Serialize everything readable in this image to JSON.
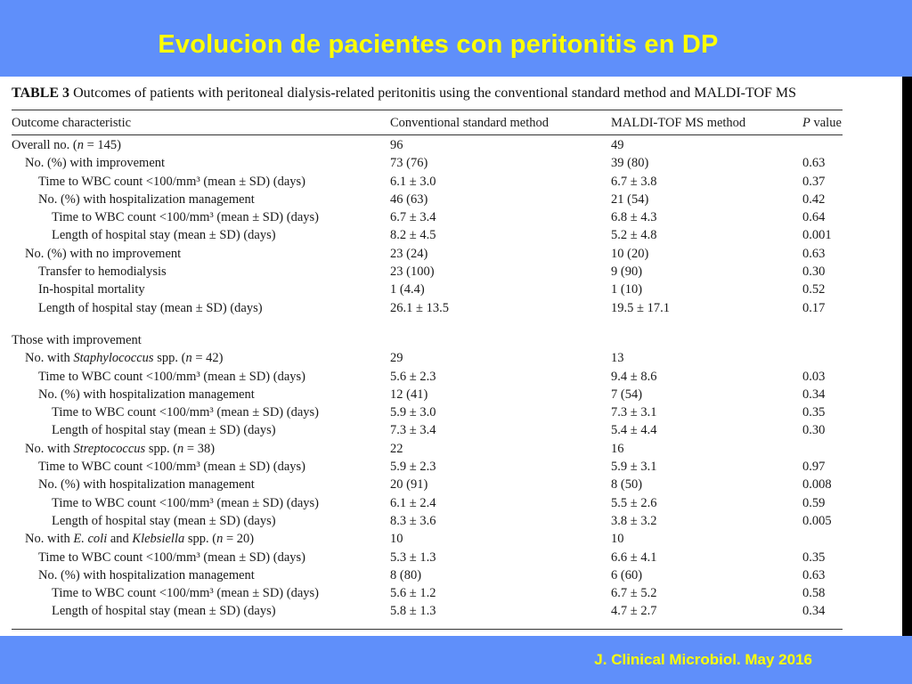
{
  "slide": {
    "title": "Evolucion de pacientes con peritonitis en DP",
    "footer": "J. Clinical Microbiol. May 2016",
    "colors": {
      "background": "#5f8ffa",
      "title": "#ffff00",
      "panel": "#ffffff"
    }
  },
  "table": {
    "caption_label": "TABLE 3",
    "caption_text": "Outcomes of patients with peritoneal dialysis-related peritonitis using the conventional standard method and MALDI-TOF MS",
    "headers": [
      "Outcome characteristic",
      "Conventional standard method",
      "MALDI-TOF MS method",
      "P value"
    ],
    "section1": [
      {
        "indent": 0,
        "label": "Overall no. (n = 145)",
        "conv": "96",
        "maldi": "49",
        "p": ""
      },
      {
        "indent": 1,
        "label": "No. (%) with improvement",
        "conv": "73 (76)",
        "maldi": "39 (80)",
        "p": "0.63"
      },
      {
        "indent": 2,
        "label": "Time to WBC count <100/mm³ (mean ± SD) (days)",
        "conv": "6.1 ± 3.0",
        "maldi": "6.7 ± 3.8",
        "p": "0.37"
      },
      {
        "indent": 2,
        "label": "No. (%) with hospitalization management",
        "conv": "46 (63)",
        "maldi": "21 (54)",
        "p": "0.42"
      },
      {
        "indent": 3,
        "label": "Time to WBC count <100/mm³ (mean ± SD) (days)",
        "conv": "6.7 ± 3.4",
        "maldi": "6.8 ± 4.3",
        "p": "0.64"
      },
      {
        "indent": 3,
        "label": "Length of hospital stay (mean ± SD) (days)",
        "conv": "8.2 ± 4.5",
        "maldi": "5.2 ± 4.8",
        "p": "0.001"
      },
      {
        "indent": 1,
        "label": "No. (%) with no improvement",
        "conv": "23 (24)",
        "maldi": "10 (20)",
        "p": "0.63"
      },
      {
        "indent": 2,
        "label": "Transfer to hemodialysis",
        "conv": "23 (100)",
        "maldi": "9 (90)",
        "p": "0.30"
      },
      {
        "indent": 2,
        "label": "In-hospital mortality",
        "conv": "1 (4.4)",
        "maldi": "1 (10)",
        "p": "0.52"
      },
      {
        "indent": 2,
        "label": "Length of hospital stay (mean ± SD) (days)",
        "conv": "26.1 ± 13.5",
        "maldi": "19.5 ± 17.1",
        "p": "0.17"
      }
    ],
    "section2": [
      {
        "indent": 0,
        "label": "Those with improvement",
        "conv": "",
        "maldi": "",
        "p": ""
      },
      {
        "indent": 1,
        "label": "No. with Staphylococcus spp. (n = 42)",
        "conv": "29",
        "maldi": "13",
        "p": ""
      },
      {
        "indent": 2,
        "label": "Time to WBC count <100/mm³ (mean ± SD) (days)",
        "conv": "5.6 ± 2.3",
        "maldi": "9.4 ± 8.6",
        "p": "0.03"
      },
      {
        "indent": 2,
        "label": "No. (%) with hospitalization management",
        "conv": "12 (41)",
        "maldi": "7 (54)",
        "p": "0.34"
      },
      {
        "indent": 3,
        "label": "Time to WBC count <100/mm³ (mean ± SD) (days)",
        "conv": "5.9 ± 3.0",
        "maldi": "7.3 ± 3.1",
        "p": "0.35"
      },
      {
        "indent": 3,
        "label": "Length of hospital stay (mean ± SD) (days)",
        "conv": "7.3 ± 3.4",
        "maldi": "5.4 ± 4.4",
        "p": "0.30"
      },
      {
        "indent": 1,
        "label": "No. with Streptococcus spp. (n = 38)",
        "conv": "22",
        "maldi": "16",
        "p": ""
      },
      {
        "indent": 2,
        "label": "Time to WBC count <100/mm³ (mean ± SD) (days)",
        "conv": "5.9 ± 2.3",
        "maldi": "5.9 ± 3.1",
        "p": "0.97"
      },
      {
        "indent": 2,
        "label": "No. (%) with hospitalization management",
        "conv": "20 (91)",
        "maldi": "8 (50)",
        "p": "0.008"
      },
      {
        "indent": 3,
        "label": "Time to WBC count <100/mm³ (mean ± SD) (days)",
        "conv": "6.1 ± 2.4",
        "maldi": "5.5 ± 2.6",
        "p": "0.59"
      },
      {
        "indent": 3,
        "label": "Length of hospital stay (mean ± SD) (days)",
        "conv": "8.3 ± 3.6",
        "maldi": "3.8 ± 3.2",
        "p": "0.005"
      },
      {
        "indent": 1,
        "label": "No. with E. coli and Klebsiella spp. (n = 20)",
        "conv": "10",
        "maldi": "10",
        "p": ""
      },
      {
        "indent": 2,
        "label": "Time to WBC count <100/mm³ (mean ± SD) (days)",
        "conv": "5.3 ± 1.3",
        "maldi": "6.6 ± 4.1",
        "p": "0.35"
      },
      {
        "indent": 2,
        "label": "No. (%) with hospitalization management",
        "conv": "8 (80)",
        "maldi": "6 (60)",
        "p": "0.63"
      },
      {
        "indent": 3,
        "label": "Time to WBC count <100/mm³ (mean ± SD) (days)",
        "conv": "5.6 ± 1.2",
        "maldi": "6.7 ± 5.2",
        "p": "0.58"
      },
      {
        "indent": 3,
        "label": "Length of hospital stay (mean ± SD) (days)",
        "conv": "5.8 ± 1.3",
        "maldi": "4.7 ± 2.7",
        "p": "0.34"
      }
    ]
  }
}
